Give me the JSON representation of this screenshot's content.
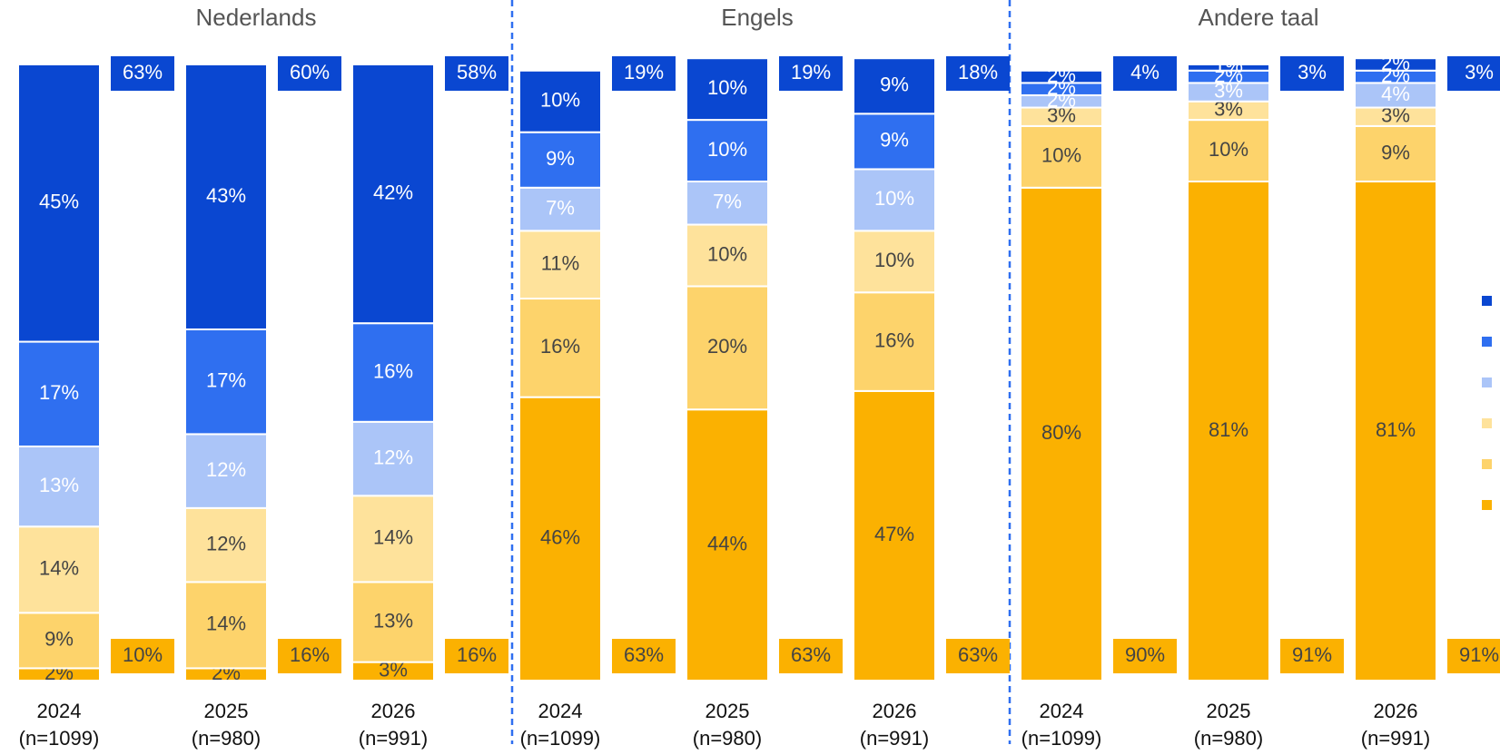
{
  "chart_data": [
    {
      "type": "bar",
      "stacked": true,
      "title": "Nederlands",
      "ylim": [
        0,
        100
      ],
      "categories": [
        "2024",
        "2025",
        "2026"
      ],
      "sample_labels": [
        "(n=1099)",
        "(n=980)",
        "(n=991)"
      ],
      "series": [
        {
          "color": "#fbb101",
          "values": [
            2,
            2,
            3
          ],
          "value_labels": [
            "2%",
            "2%",
            "3%"
          ]
        },
        {
          "color": "#fdd36b",
          "values": [
            9,
            14,
            13
          ],
          "value_labels": [
            "9%",
            "14%",
            "13%"
          ]
        },
        {
          "color": "#fee29b",
          "values": [
            14,
            12,
            14
          ],
          "value_labels": [
            "14%",
            "12%",
            "14%"
          ]
        },
        {
          "color": "#abc5f8",
          "values": [
            13,
            12,
            12
          ],
          "value_labels": [
            "13%",
            "12%",
            "12%"
          ]
        },
        {
          "color": "#2f6ff0",
          "values": [
            17,
            17,
            16
          ],
          "value_labels": [
            "17%",
            "17%",
            "16%"
          ]
        },
        {
          "color": "#0a47d1",
          "values": [
            45,
            43,
            42
          ],
          "value_labels": [
            "45%",
            "43%",
            "42%"
          ]
        }
      ],
      "top_totals": {
        "color": "#0a47d1",
        "values": [
          63,
          60,
          58
        ],
        "value_labels": [
          "63%",
          "60%",
          "58%"
        ]
      },
      "bottom_totals": {
        "color": "#fbb101",
        "values": [
          10,
          16,
          16
        ],
        "value_labels": [
          "10%",
          "16%",
          "16%"
        ]
      }
    },
    {
      "type": "bar",
      "stacked": true,
      "title": "Engels",
      "ylim": [
        0,
        100
      ],
      "categories": [
        "2024",
        "2025",
        "2026"
      ],
      "sample_labels": [
        "(n=1099)",
        "(n=980)",
        "(n=991)"
      ],
      "series": [
        {
          "color": "#fbb101",
          "values": [
            46,
            44,
            47
          ],
          "value_labels": [
            "46%",
            "44%",
            "47%"
          ]
        },
        {
          "color": "#fdd36b",
          "values": [
            16,
            20,
            16
          ],
          "value_labels": [
            "16%",
            "20%",
            "16%"
          ]
        },
        {
          "color": "#fee29b",
          "values": [
            11,
            10,
            10
          ],
          "value_labels": [
            "11%",
            "10%",
            "10%"
          ]
        },
        {
          "color": "#abc5f8",
          "values": [
            7,
            7,
            10
          ],
          "value_labels": [
            "7%",
            "7%",
            "10%"
          ]
        },
        {
          "color": "#2f6ff0",
          "values": [
            9,
            10,
            9
          ],
          "value_labels": [
            "9%",
            "10%",
            "9%"
          ]
        },
        {
          "color": "#0a47d1",
          "values": [
            10,
            10,
            9
          ],
          "value_labels": [
            "10%",
            "10%",
            "9%"
          ]
        }
      ],
      "top_totals": {
        "color": "#0a47d1",
        "values": [
          19,
          19,
          18
        ],
        "value_labels": [
          "19%",
          "19%",
          "18%"
        ]
      },
      "bottom_totals": {
        "color": "#fbb101",
        "values": [
          63,
          63,
          63
        ],
        "value_labels": [
          "63%",
          "63%",
          "63%"
        ]
      }
    },
    {
      "type": "bar",
      "stacked": true,
      "title": "Andere taal",
      "ylim": [
        0,
        100
      ],
      "categories": [
        "2024",
        "2025",
        "2026"
      ],
      "sample_labels": [
        "(n=1099)",
        "(n=980)",
        "(n=991)"
      ],
      "series": [
        {
          "color": "#fbb101",
          "values": [
            80,
            81,
            81
          ],
          "value_labels": [
            "80%",
            "81%",
            "81%"
          ]
        },
        {
          "color": "#fdd36b",
          "values": [
            10,
            10,
            9
          ],
          "value_labels": [
            "10%",
            "10%",
            "9%"
          ]
        },
        {
          "color": "#fee29b",
          "values": [
            3,
            3,
            3
          ],
          "value_labels": [
            "3%",
            "3%",
            "3%"
          ]
        },
        {
          "color": "#abc5f8",
          "values": [
            2,
            3,
            4
          ],
          "value_labels": [
            "2%",
            "3%",
            "4%"
          ]
        },
        {
          "color": "#2f6ff0",
          "values": [
            2,
            2,
            2
          ],
          "value_labels": [
            "2%",
            "2%",
            "2%"
          ]
        },
        {
          "color": "#0a47d1",
          "values": [
            2,
            1,
            2
          ],
          "value_labels": [
            "2%",
            "1%",
            "2%"
          ]
        }
      ],
      "top_totals": {
        "color": "#0a47d1",
        "values": [
          4,
          3,
          3
        ],
        "value_labels": [
          "4%",
          "3%",
          "3%"
        ]
      },
      "bottom_totals": {
        "color": "#fbb101",
        "values": [
          90,
          91,
          91
        ],
        "value_labels": [
          "90%",
          "91%",
          "91%"
        ]
      }
    }
  ]
}
